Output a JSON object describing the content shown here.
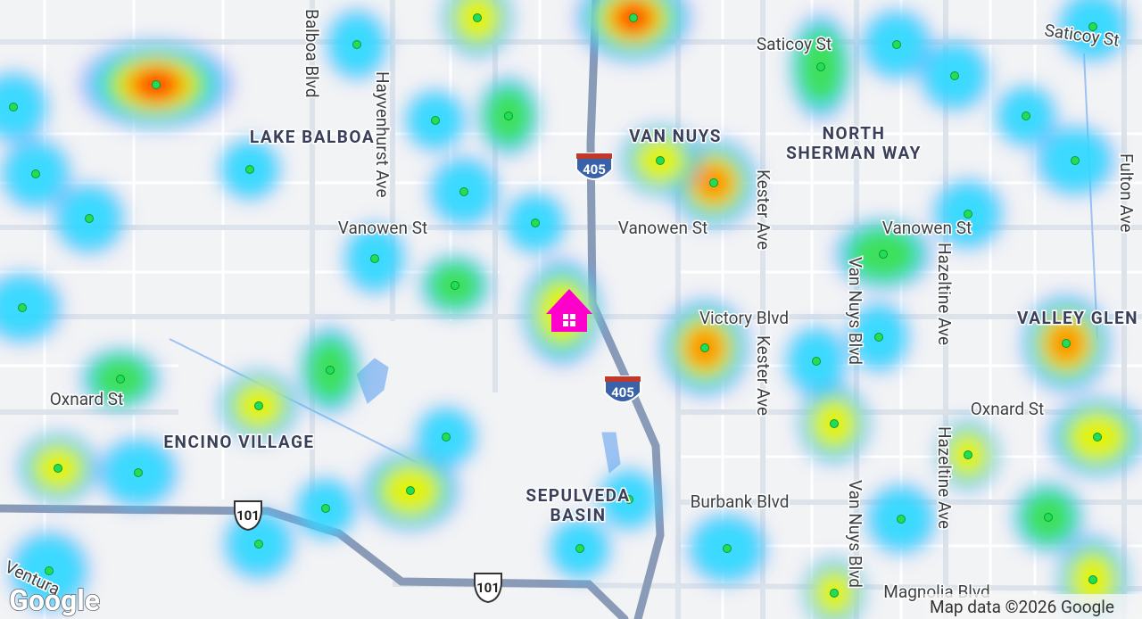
{
  "labels": {
    "balboa_blvd": "Balboa Blvd",
    "hayvenhurst_ave": "Hayvenhurst Ave",
    "lake_balboa": "LAKE BALBOA",
    "van_nuys": "VAN NUYS",
    "north_sherman_way": [
      "NORTH",
      "SHERMAN WAY"
    ],
    "saticoy_st_1": "Saticoy St",
    "saticoy_st_2": "Saticoy St",
    "fulton_ave": "Fulton Ave",
    "kester_ave_1": "Kester Ave",
    "kester_ave_2": "Kester Ave",
    "vanowen_st_1": "Vanowen St",
    "vanowen_st_2": "Vanowen St",
    "vanowen_st_3": "Vanowen St",
    "van_nuys_blvd_1": "Van Nuys Blvd",
    "van_nuys_blvd_2": "Van Nuys Blvd",
    "hazeltine_ave_1": "Hazeltine Ave",
    "hazeltine_ave_2": "Hazeltine Ave",
    "victory_blvd": "Victory Blvd",
    "valley_glen": "VALLEY GLEN",
    "oxnard_st_1": "Oxnard St",
    "oxnard_st_2": "Oxnard St",
    "encino_village": "ENCINO VILLAGE",
    "sepulveda_basin": [
      "SEPULVEDA",
      "BASIN"
    ],
    "burbank_blvd": "Burbank Blvd",
    "magnolia_blvd": "Magnolia Blvd",
    "ventura": "Ventura"
  },
  "shields": {
    "i405_1": "405",
    "i405_2": "405",
    "us101_1": "101",
    "us101_2": "101"
  },
  "logo": "Google",
  "attribution": "Map data ©2026 Google"
}
